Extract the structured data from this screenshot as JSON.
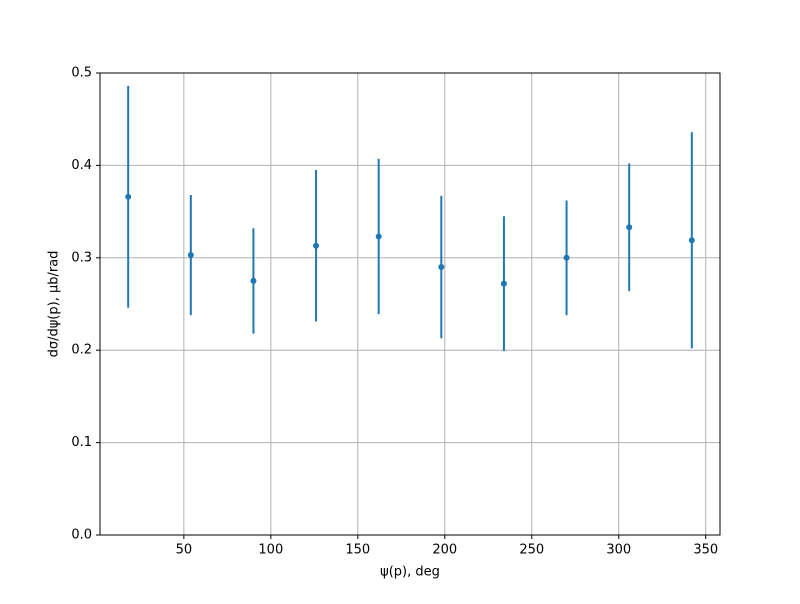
{
  "chart_data": {
    "type": "errorbar",
    "x_label": "ψ(p), deg",
    "y_label": "dσ/dψ(p), μb/rad",
    "x": [
      18,
      54,
      90,
      126,
      162,
      198,
      234,
      270,
      306,
      342
    ],
    "values": [
      0.366,
      0.303,
      0.275,
      0.313,
      0.323,
      0.29,
      0.272,
      0.3,
      0.333,
      0.319
    ],
    "errors": [
      0.12,
      0.065,
      0.057,
      0.082,
      0.084,
      0.077,
      0.073,
      0.062,
      0.069,
      0.117
    ],
    "color": "#1f77b4",
    "xlim": [
      1.8,
      358.2
    ],
    "xticks": [
      50,
      100,
      150,
      200,
      250,
      300,
      350
    ],
    "ylim": [
      0,
      0.5
    ],
    "yticks": [
      {
        "value": 0,
        "label": "0.0"
      },
      0.1,
      0.2,
      0.3,
      0.4,
      0.5
    ],
    "grid": true
  }
}
